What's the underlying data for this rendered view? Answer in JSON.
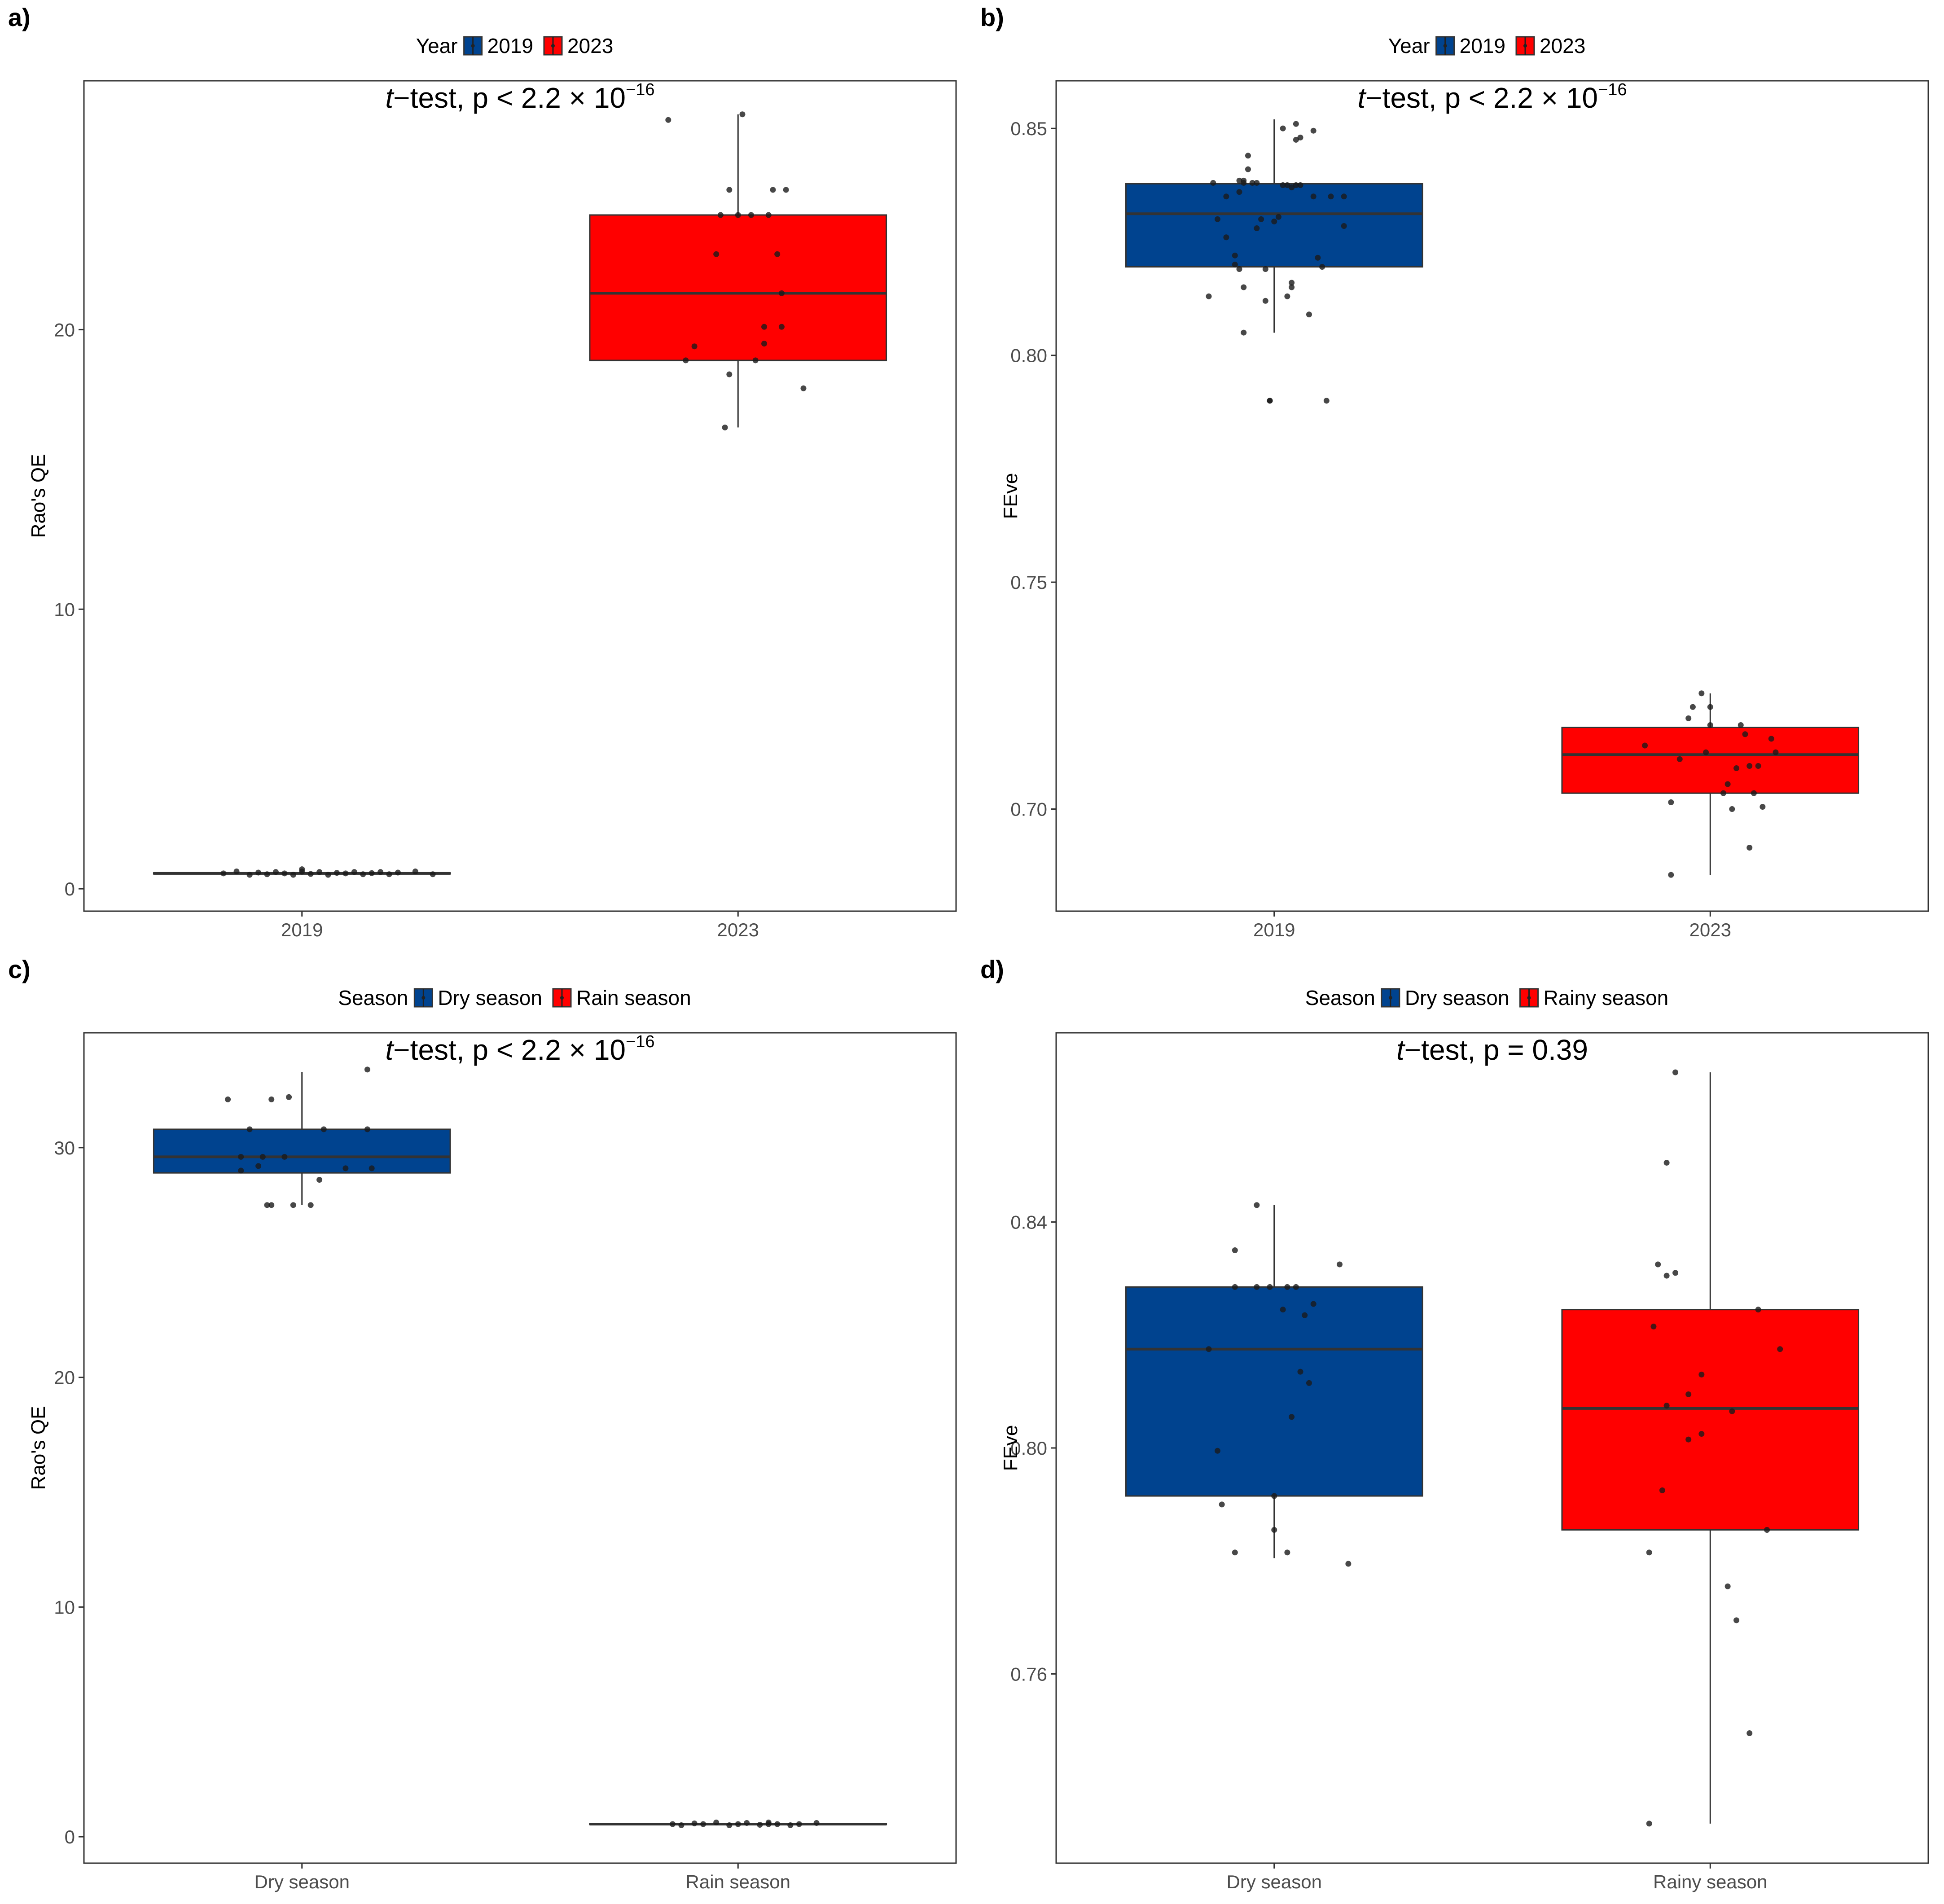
{
  "colors": {
    "blue": "#00438f",
    "red": "#ff0000",
    "median": "#333333",
    "whisker": "#333333",
    "point": "#1a1a1a",
    "frame": "#333333",
    "tick_text": "#4d4d4d"
  },
  "chart_data": [
    {
      "type": "box",
      "panel_label": "a)",
      "legend": {
        "title": "Year",
        "entries": [
          "2019",
          "2023"
        ]
      },
      "annotation": {
        "prefix": "t",
        "text": "−test, p < 2.2 × 10",
        "sup": "−16"
      },
      "ylabel": "Rao's QE",
      "xlabel": "",
      "ylim": [
        -0.8,
        28.9
      ],
      "yticks": [
        0,
        10,
        20
      ],
      "tick_labels": [
        "0",
        "10",
        "20"
      ],
      "categories": [
        "2019",
        "2023"
      ],
      "boxes": [
        {
          "q1": 0.53,
          "median": 0.55,
          "q3": 0.57,
          "whisker_low": 0.5,
          "whisker_high": 0.6
        },
        {
          "q1": 18.9,
          "median": 21.3,
          "q3": 24.1,
          "whisker_low": 16.5,
          "whisker_high": 27.7
        }
      ],
      "points": [
        [
          [
            -0.18,
            0.55
          ],
          [
            -0.15,
            0.62
          ],
          [
            -0.12,
            0.5
          ],
          [
            -0.1,
            0.58
          ],
          [
            -0.08,
            0.52
          ],
          [
            -0.06,
            0.6
          ],
          [
            -0.04,
            0.55
          ],
          [
            -0.02,
            0.5
          ],
          [
            0.0,
            0.62
          ],
          [
            0.0,
            0.7
          ],
          [
            0.02,
            0.53
          ],
          [
            0.04,
            0.6
          ],
          [
            0.06,
            0.5
          ],
          [
            0.08,
            0.57
          ],
          [
            0.1,
            0.55
          ],
          [
            0.12,
            0.6
          ],
          [
            0.14,
            0.52
          ],
          [
            0.16,
            0.56
          ],
          [
            0.18,
            0.6
          ],
          [
            0.2,
            0.52
          ],
          [
            0.22,
            0.58
          ],
          [
            0.26,
            0.62
          ],
          [
            0.3,
            0.52
          ]
        ],
        [
          [
            -0.16,
            27.5
          ],
          [
            -0.12,
            18.9
          ],
          [
            -0.1,
            19.4
          ],
          [
            -0.05,
            22.7
          ],
          [
            -0.04,
            24.1
          ],
          [
            -0.03,
            16.5
          ],
          [
            -0.02,
            25.0
          ],
          [
            -0.02,
            18.4
          ],
          [
            0.0,
            24.1
          ],
          [
            0.01,
            27.7
          ],
          [
            0.03,
            24.1
          ],
          [
            0.04,
            18.9
          ],
          [
            0.06,
            19.5
          ],
          [
            0.07,
            24.1
          ],
          [
            0.06,
            20.1
          ],
          [
            0.08,
            25.0
          ],
          [
            0.09,
            22.7
          ],
          [
            0.1,
            21.3
          ],
          [
            0.1,
            20.1
          ],
          [
            0.11,
            25.0
          ],
          [
            0.15,
            17.9
          ]
        ]
      ]
    },
    {
      "type": "box",
      "panel_label": "b)",
      "legend": {
        "title": "Year",
        "entries": [
          "2019",
          "2023"
        ]
      },
      "annotation": {
        "prefix": "t",
        "text": "−test, p < 2.2 × 10",
        "sup": "−16"
      },
      "ylabel": "FEve",
      "xlabel": "",
      "ylim": [
        0.6775,
        0.8605
      ],
      "yticks": [
        0.7,
        0.75,
        0.8,
        0.85
      ],
      "tick_labels": [
        "0.70",
        "0.75",
        "0.80",
        "0.85"
      ],
      "categories": [
        "2019",
        "2023"
      ],
      "boxes": [
        {
          "q1": 0.8195,
          "median": 0.8312,
          "q3": 0.8378,
          "whisker_low": 0.805,
          "whisker_high": 0.852
        },
        {
          "q1": 0.7035,
          "median": 0.712,
          "q3": 0.718,
          "whisker_low": 0.6855,
          "whisker_high": 0.7255
        }
      ],
      "points": [
        [
          [
            -0.15,
            0.813
          ],
          [
            -0.14,
            0.838
          ],
          [
            -0.13,
            0.83
          ],
          [
            -0.11,
            0.835
          ],
          [
            -0.11,
            0.826
          ],
          [
            -0.09,
            0.822
          ],
          [
            -0.09,
            0.82
          ],
          [
            -0.08,
            0.819
          ],
          [
            -0.08,
            0.836
          ],
          [
            -0.08,
            0.8385
          ],
          [
            -0.07,
            0.8385
          ],
          [
            -0.07,
            0.805
          ],
          [
            -0.07,
            0.815
          ],
          [
            -0.07,
            0.838
          ],
          [
            -0.06,
            0.844
          ],
          [
            -0.06,
            0.841
          ],
          [
            -0.05,
            0.838
          ],
          [
            -0.04,
            0.838
          ],
          [
            -0.04,
            0.828
          ],
          [
            -0.03,
            0.83
          ],
          [
            -0.02,
            0.812
          ],
          [
            -0.02,
            0.819
          ],
          [
            -0.01,
            0.79
          ],
          [
            -0.01,
            0.79
          ],
          [
            0.0,
            0.8295
          ],
          [
            0.01,
            0.8305
          ],
          [
            0.02,
            0.85
          ],
          [
            0.02,
            0.8375
          ],
          [
            0.03,
            0.8375
          ],
          [
            0.03,
            0.813
          ],
          [
            0.04,
            0.837
          ],
          [
            0.04,
            0.815
          ],
          [
            0.04,
            0.816
          ],
          [
            0.05,
            0.8375
          ],
          [
            0.05,
            0.8475
          ],
          [
            0.05,
            0.851
          ],
          [
            0.06,
            0.8375
          ],
          [
            0.06,
            0.848
          ],
          [
            0.08,
            0.809
          ],
          [
            0.09,
            0.8495
          ],
          [
            0.09,
            0.835
          ],
          [
            0.1,
            0.8215
          ],
          [
            0.11,
            0.8195
          ],
          [
            0.12,
            0.79
          ],
          [
            0.13,
            0.835
          ],
          [
            0.16,
            0.835
          ],
          [
            0.16,
            0.8285
          ]
        ],
        [
          [
            -0.15,
            0.714
          ],
          [
            -0.09,
            0.7015
          ],
          [
            -0.09,
            0.6855
          ],
          [
            -0.07,
            0.711
          ],
          [
            -0.05,
            0.72
          ],
          [
            -0.04,
            0.7225
          ],
          [
            -0.02,
            0.7255
          ],
          [
            -0.01,
            0.7125
          ],
          [
            0.0,
            0.7185
          ],
          [
            0.0,
            0.7225
          ],
          [
            0.03,
            0.7035
          ],
          [
            0.04,
            0.7055
          ],
          [
            0.05,
            0.7
          ],
          [
            0.06,
            0.709
          ],
          [
            0.07,
            0.7185
          ],
          [
            0.08,
            0.7165
          ],
          [
            0.09,
            0.7095
          ],
          [
            0.09,
            0.6915
          ],
          [
            0.1,
            0.7035
          ],
          [
            0.11,
            0.7095
          ],
          [
            0.12,
            0.7005
          ],
          [
            0.14,
            0.7155
          ],
          [
            0.15,
            0.7125
          ]
        ]
      ]
    },
    {
      "type": "box",
      "panel_label": "c)",
      "legend": {
        "title": "Season",
        "entries": [
          "Dry season",
          "Rain season"
        ]
      },
      "annotation": {
        "prefix": "t",
        "text": "−test, p < 2.2 × 10",
        "sup": "−16"
      },
      "ylabel": "Rao's QE",
      "xlabel": "",
      "ylim": [
        -1.15,
        35.0
      ],
      "yticks": [
        0,
        10,
        20,
        30
      ],
      "tick_labels": [
        "0",
        "10",
        "20",
        "30"
      ],
      "categories": [
        "Dry season",
        "Rain season"
      ],
      "boxes": [
        {
          "q1": 28.9,
          "median": 29.6,
          "q3": 30.8,
          "whisker_low": 27.5,
          "whisker_high": 33.3
        },
        {
          "q1": 0.53,
          "median": 0.55,
          "q3": 0.57,
          "whisker_low": 0.5,
          "whisker_high": 0.6
        }
      ],
      "points": [
        [
          [
            -0.17,
            32.1
          ],
          [
            -0.14,
            29.0
          ],
          [
            -0.14,
            29.6
          ],
          [
            -0.12,
            30.8
          ],
          [
            -0.1,
            29.2
          ],
          [
            -0.09,
            29.6
          ],
          [
            -0.08,
            27.5
          ],
          [
            -0.07,
            27.5
          ],
          [
            -0.07,
            32.1
          ],
          [
            -0.04,
            29.6
          ],
          [
            -0.03,
            32.2
          ],
          [
            -0.02,
            27.5
          ],
          [
            0.02,
            27.5
          ],
          [
            0.04,
            28.6
          ],
          [
            0.05,
            30.8
          ],
          [
            0.1,
            29.1
          ],
          [
            0.15,
            30.8
          ],
          [
            0.15,
            33.4
          ],
          [
            0.16,
            29.1
          ]
        ],
        [
          [
            -0.15,
            0.55
          ],
          [
            -0.13,
            0.5
          ],
          [
            -0.1,
            0.58
          ],
          [
            -0.08,
            0.55
          ],
          [
            -0.05,
            0.62
          ],
          [
            -0.02,
            0.5
          ],
          [
            0.0,
            0.55
          ],
          [
            0.02,
            0.6
          ],
          [
            0.05,
            0.52
          ],
          [
            0.07,
            0.55
          ],
          [
            0.07,
            0.62
          ],
          [
            0.09,
            0.55
          ],
          [
            0.12,
            0.5
          ],
          [
            0.14,
            0.55
          ],
          [
            0.18,
            0.6
          ]
        ]
      ]
    },
    {
      "type": "box",
      "panel_label": "d)",
      "legend": {
        "title": "Season",
        "entries": [
          "Dry season",
          "Rainy season"
        ]
      },
      "annotation": {
        "prefix": "t",
        "text": "−test, p = 0.39",
        "sup": ""
      },
      "ylabel": "FEve",
      "xlabel": "",
      "ylim": [
        0.7265,
        0.8735
      ],
      "yticks": [
        0.76,
        0.8,
        0.84
      ],
      "tick_labels": [
        "0.76",
        "0.80",
        "0.84"
      ],
      "categories": [
        "Dry season",
        "Rainy season"
      ],
      "boxes": [
        {
          "q1": 0.7915,
          "median": 0.8175,
          "q3": 0.8285,
          "whisker_low": 0.7805,
          "whisker_high": 0.843
        },
        {
          "q1": 0.7855,
          "median": 0.807,
          "q3": 0.8245,
          "whisker_low": 0.7335,
          "whisker_high": 0.8665
        }
      ],
      "points": [
        [
          [
            -0.15,
            0.8175
          ],
          [
            -0.13,
            0.7995
          ],
          [
            -0.12,
            0.79
          ],
          [
            -0.09,
            0.7815
          ],
          [
            -0.09,
            0.835
          ],
          [
            -0.09,
            0.8285
          ],
          [
            -0.04,
            0.843
          ],
          [
            -0.04,
            0.8285
          ],
          [
            -0.01,
            0.8285
          ],
          [
            0.0,
            0.7915
          ],
          [
            0.0,
            0.7855
          ],
          [
            0.02,
            0.8245
          ],
          [
            0.03,
            0.8285
          ],
          [
            0.03,
            0.7815
          ],
          [
            0.04,
            0.8055
          ],
          [
            0.05,
            0.8285
          ],
          [
            0.06,
            0.8135
          ],
          [
            0.07,
            0.8235
          ],
          [
            0.08,
            0.8115
          ],
          [
            0.09,
            0.8255
          ],
          [
            0.15,
            0.8325
          ],
          [
            0.17,
            0.7795
          ]
        ],
        [
          [
            -0.14,
            0.7815
          ],
          [
            -0.14,
            0.7335
          ],
          [
            -0.13,
            0.8215
          ],
          [
            -0.12,
            0.8325
          ],
          [
            -0.11,
            0.7925
          ],
          [
            -0.1,
            0.8305
          ],
          [
            -0.1,
            0.8075
          ],
          [
            -0.1,
            0.8505
          ],
          [
            -0.08,
            0.831
          ],
          [
            -0.08,
            0.8665
          ],
          [
            -0.05,
            0.8015
          ],
          [
            -0.05,
            0.8095
          ],
          [
            -0.02,
            0.8025
          ],
          [
            -0.02,
            0.813
          ],
          [
            0.04,
            0.7755
          ],
          [
            0.05,
            0.8065
          ],
          [
            0.06,
            0.7695
          ],
          [
            0.09,
            0.7495
          ],
          [
            0.11,
            0.8245
          ],
          [
            0.13,
            0.7855
          ],
          [
            0.16,
            0.8175
          ]
        ]
      ]
    }
  ]
}
